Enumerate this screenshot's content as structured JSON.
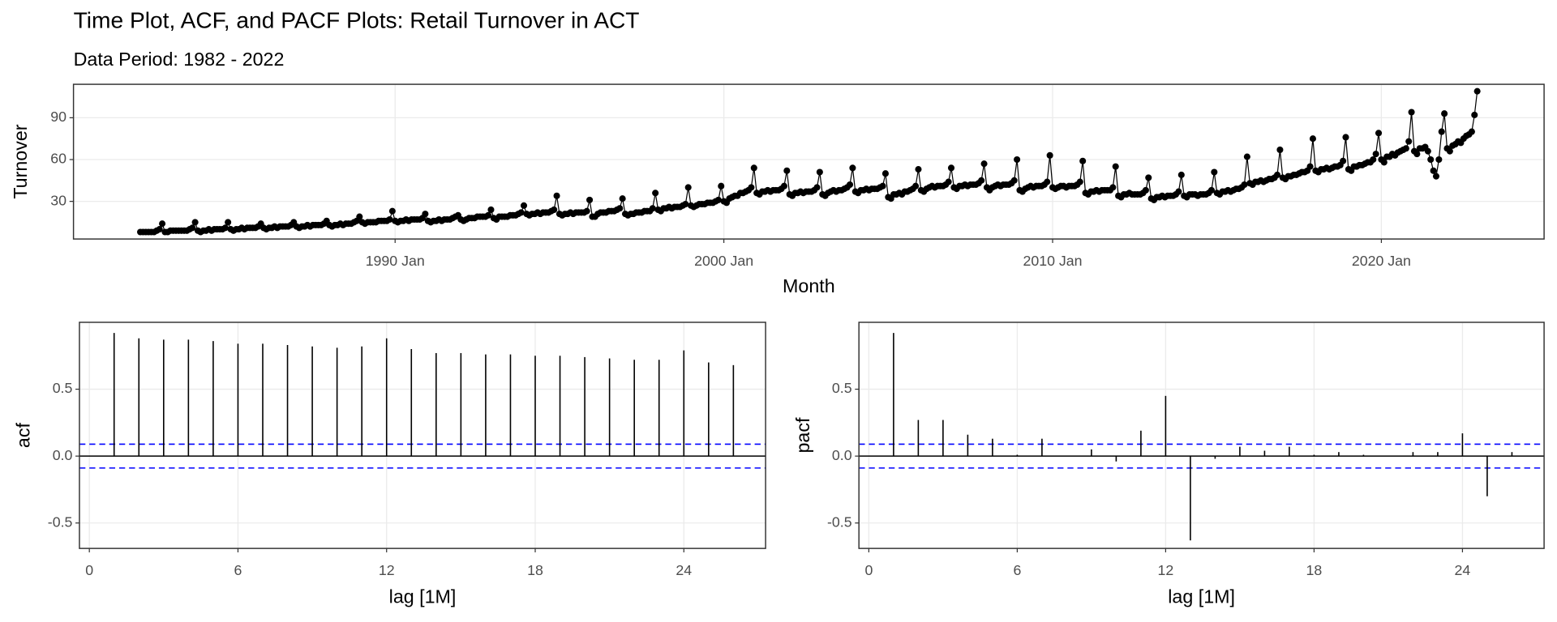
{
  "chart_data": [
    {
      "type": "line",
      "title": "Time Plot, ACF, and PACF Plots: Retail Turnover in ACT",
      "subtitle": "Data Period: 1982 - 2022",
      "x_label": "Month",
      "y_label": "Turnover",
      "color": "#000000",
      "markers": true,
      "grid": true,
      "x": [
        "1982 Apr",
        "1982 May",
        "1982 Jun",
        "1982 Jul",
        "1982 Aug",
        "1982 Sep",
        "1982 Oct",
        "1982 Nov",
        "1982 Dec",
        "1983 Jan",
        "1983 Feb",
        "1983 Mar",
        "1983 Apr",
        "1983 May",
        "1983 Jun",
        "1983 Jul",
        "1983 Aug",
        "1983 Sep",
        "1983 Oct",
        "1983 Nov",
        "1983 Dec",
        "1984 Jan",
        "1984 Feb",
        "1984 Mar",
        "1984 Apr",
        "1984 May",
        "1984 Jun",
        "1984 Jul",
        "1984 Aug",
        "1984 Sep",
        "1984 Oct",
        "1984 Nov",
        "1984 Dec",
        "1985 Jan",
        "1985 Feb",
        "1985 Mar",
        "1985 Apr",
        "1985 May",
        "1985 Jun",
        "1985 Jul",
        "1985 Aug",
        "1985 Sep",
        "1985 Oct",
        "1985 Nov",
        "1985 Dec",
        "1986 Jan",
        "1986 Feb",
        "1986 Mar",
        "1986 Apr",
        "1986 May",
        "1986 Jun",
        "1986 Jul",
        "1986 Aug",
        "1986 Sep",
        "1986 Oct",
        "1986 Nov",
        "1986 Dec",
        "1987 Jan",
        "1987 Feb",
        "1987 Mar",
        "1987 Apr",
        "1987 May",
        "1987 Jun",
        "1987 Jul",
        "1987 Aug",
        "1987 Sep",
        "1987 Oct",
        "1987 Nov",
        "1987 Dec",
        "1988 Jan",
        "1988 Feb",
        "1988 Mar",
        "1988 Apr",
        "1988 May",
        "1988 Jun",
        "1988 Jul",
        "1988 Aug",
        "1988 Sep",
        "1988 Oct",
        "1988 Nov",
        "1988 Dec",
        "1989 Jan",
        "1989 Feb",
        "1989 Mar",
        "1989 Apr",
        "1989 May",
        "1989 Jun",
        "1989 Jul",
        "1989 Aug",
        "1989 Sep",
        "1989 Oct",
        "1989 Nov",
        "1989 Dec",
        "1990 Jan",
        "1990 Feb",
        "1990 Mar",
        "1990 Apr",
        "1990 May",
        "1990 Jun",
        "1990 Jul",
        "1990 Aug",
        "1990 Sep",
        "1990 Oct",
        "1990 Nov",
        "1990 Dec",
        "1991 Jan",
        "1991 Feb",
        "1991 Mar",
        "1991 Apr",
        "1991 May",
        "1991 Jun",
        "1991 Jul",
        "1991 Aug",
        "1991 Sep",
        "1991 Oct",
        "1991 Nov",
        "1991 Dec",
        "1992 Jan",
        "1992 Feb",
        "1992 Mar",
        "1992 Apr",
        "1992 May",
        "1992 Jun",
        "1992 Jul",
        "1992 Aug",
        "1992 Sep",
        "1992 Oct",
        "1992 Nov",
        "1992 Dec",
        "1993 Jan",
        "1993 Feb",
        "1993 Mar",
        "1993 Apr",
        "1993 May",
        "1993 Jun",
        "1993 Jul",
        "1993 Aug",
        "1993 Sep",
        "1993 Oct",
        "1993 Nov",
        "1993 Dec",
        "1994 Jan",
        "1994 Feb",
        "1994 Mar",
        "1994 Apr",
        "1994 May",
        "1994 Jun",
        "1994 Jul",
        "1994 Aug",
        "1994 Sep",
        "1994 Oct",
        "1994 Nov",
        "1994 Dec",
        "1995 Jan",
        "1995 Feb",
        "1995 Mar",
        "1995 Apr",
        "1995 May",
        "1995 Jun",
        "1995 Jul",
        "1995 Aug",
        "1995 Sep",
        "1995 Oct",
        "1995 Nov",
        "1995 Dec",
        "1996 Jan",
        "1996 Feb",
        "1996 Mar",
        "1996 Apr",
        "1996 May",
        "1996 Jun",
        "1996 Jul",
        "1996 Aug",
        "1996 Sep",
        "1996 Oct",
        "1996 Nov",
        "1996 Dec",
        "1997 Jan",
        "1997 Feb",
        "1997 Mar",
        "1997 Apr",
        "1997 May",
        "1997 Jun",
        "1997 Jul",
        "1997 Aug",
        "1997 Sep",
        "1997 Oct",
        "1997 Nov",
        "1997 Dec",
        "1998 Jan",
        "1998 Feb",
        "1998 Mar",
        "1998 Apr",
        "1998 May",
        "1998 Jun",
        "1998 Jul",
        "1998 Aug",
        "1998 Sep",
        "1998 Oct",
        "1998 Nov",
        "1998 Dec",
        "1999 Jan",
        "1999 Feb",
        "1999 Mar",
        "1999 Apr",
        "1999 May",
        "1999 Jun",
        "1999 Jul",
        "1999 Aug",
        "1999 Sep",
        "1999 Oct",
        "1999 Nov",
        "1999 Dec",
        "2000 Jan",
        "2000 Feb",
        "2000 Mar",
        "2000 Apr",
        "2000 May",
        "2000 Jun",
        "2000 Jul",
        "2000 Aug",
        "2000 Sep",
        "2000 Oct",
        "2000 Nov",
        "2000 Dec",
        "2001 Jan",
        "2001 Feb",
        "2001 Mar",
        "2001 Apr",
        "2001 May",
        "2001 Jun",
        "2001 Jul",
        "2001 Aug",
        "2001 Sep",
        "2001 Oct",
        "2001 Nov",
        "2001 Dec",
        "2002 Jan",
        "2002 Feb",
        "2002 Mar",
        "2002 Apr",
        "2002 May",
        "2002 Jun",
        "2002 Jul",
        "2002 Aug",
        "2002 Sep",
        "2002 Oct",
        "2002 Nov",
        "2002 Dec",
        "2003 Jan",
        "2003 Feb",
        "2003 Mar",
        "2003 Apr",
        "2003 May",
        "2003 Jun",
        "2003 Jul",
        "2003 Aug",
        "2003 Sep",
        "2003 Oct",
        "2003 Nov",
        "2003 Dec",
        "2004 Jan",
        "2004 Feb",
        "2004 Mar",
        "2004 Apr",
        "2004 May",
        "2004 Jun",
        "2004 Jul",
        "2004 Aug",
        "2004 Sep",
        "2004 Oct",
        "2004 Nov",
        "2004 Dec",
        "2005 Jan",
        "2005 Feb",
        "2005 Mar",
        "2005 Apr",
        "2005 May",
        "2005 Jun",
        "2005 Jul",
        "2005 Aug",
        "2005 Sep",
        "2005 Oct",
        "2005 Nov",
        "2005 Dec",
        "2006 Jan",
        "2006 Feb",
        "2006 Mar",
        "2006 Apr",
        "2006 May",
        "2006 Jun",
        "2006 Jul",
        "2006 Aug",
        "2006 Sep",
        "2006 Oct",
        "2006 Nov",
        "2006 Dec",
        "2007 Jan",
        "2007 Feb",
        "2007 Mar",
        "2007 Apr",
        "2007 May",
        "2007 Jun",
        "2007 Jul",
        "2007 Aug",
        "2007 Sep",
        "2007 Oct",
        "2007 Nov",
        "2007 Dec",
        "2008 Jan",
        "2008 Feb",
        "2008 Mar",
        "2008 Apr",
        "2008 May",
        "2008 Jun",
        "2008 Jul",
        "2008 Aug",
        "2008 Sep",
        "2008 Oct",
        "2008 Nov",
        "2008 Dec",
        "2009 Jan",
        "2009 Feb",
        "2009 Mar",
        "2009 Apr",
        "2009 May",
        "2009 Jun",
        "2009 Jul",
        "2009 Aug",
        "2009 Sep",
        "2009 Oct",
        "2009 Nov",
        "2009 Dec",
        "2010 Jan",
        "2010 Feb",
        "2010 Mar",
        "2010 Apr",
        "2010 May",
        "2010 Jun",
        "2010 Jul",
        "2010 Aug",
        "2010 Sep",
        "2010 Oct",
        "2010 Nov",
        "2010 Dec",
        "2011 Jan",
        "2011 Feb",
        "2011 Mar",
        "2011 Apr",
        "2011 May",
        "2011 Jun",
        "2011 Jul",
        "2011 Aug",
        "2011 Sep",
        "2011 Oct",
        "2011 Nov",
        "2011 Dec",
        "2012 Jan",
        "2012 Feb",
        "2012 Mar",
        "2012 Apr",
        "2012 May",
        "2012 Jun",
        "2012 Jul",
        "2012 Aug",
        "2012 Sep",
        "2012 Oct",
        "2012 Nov",
        "2012 Dec",
        "2013 Jan",
        "2013 Feb",
        "2013 Mar",
        "2013 Apr",
        "2013 May",
        "2013 Jun",
        "2013 Jul",
        "2013 Aug",
        "2013 Sep",
        "2013 Oct",
        "2013 Nov",
        "2013 Dec",
        "2014 Jan",
        "2014 Feb",
        "2014 Mar",
        "2014 Apr",
        "2014 May",
        "2014 Jun",
        "2014 Jul",
        "2014 Aug",
        "2014 Sep",
        "2014 Oct",
        "2014 Nov",
        "2014 Dec",
        "2015 Jan",
        "2015 Feb",
        "2015 Mar",
        "2015 Apr",
        "2015 May",
        "2015 Jun",
        "2015 Jul",
        "2015 Aug",
        "2015 Sep",
        "2015 Oct",
        "2015 Nov",
        "2015 Dec",
        "2016 Jan",
        "2016 Feb",
        "2016 Mar",
        "2016 Apr",
        "2016 May",
        "2016 Jun",
        "2016 Jul",
        "2016 Aug",
        "2016 Sep",
        "2016 Oct",
        "2016 Nov",
        "2016 Dec",
        "2017 Jan",
        "2017 Feb",
        "2017 Mar",
        "2017 Apr",
        "2017 May",
        "2017 Jun",
        "2017 Jul",
        "2017 Aug",
        "2017 Sep",
        "2017 Oct",
        "2017 Nov",
        "2017 Dec",
        "2018 Jan",
        "2018 Feb",
        "2018 Mar",
        "2018 Apr",
        "2018 May",
        "2018 Jun",
        "2018 Jul",
        "2018 Aug",
        "2018 Sep",
        "2018 Oct",
        "2018 Nov",
        "2018 Dec",
        "2019 Jan",
        "2019 Feb",
        "2019 Mar",
        "2019 Apr",
        "2019 May",
        "2019 Jun",
        "2019 Jul",
        "2019 Aug",
        "2019 Sep",
        "2019 Oct",
        "2019 Nov",
        "2019 Dec",
        "2020 Jan",
        "2020 Feb",
        "2020 Mar",
        "2020 Apr",
        "2020 May",
        "2020 Jun",
        "2020 Jul",
        "2020 Aug",
        "2020 Sep",
        "2020 Oct",
        "2020 Nov",
        "2020 Dec",
        "2021 Jan",
        "2021 Feb",
        "2021 Mar",
        "2021 Apr",
        "2021 May",
        "2021 Jun",
        "2021 Jul",
        "2021 Aug",
        "2021 Sep",
        "2021 Oct",
        "2021 Nov",
        "2021 Dec",
        "2022 Jan",
        "2022 Feb",
        "2022 Mar",
        "2022 Apr",
        "2022 May",
        "2022 Jun",
        "2022 Jul",
        "2022 Aug",
        "2022 Sep",
        "2022 Oct",
        "2022 Nov",
        "2022 Dec"
      ],
      "values": [
        8,
        8,
        8,
        8,
        8,
        8,
        9,
        10,
        14,
        8,
        8,
        9,
        9,
        9,
        9,
        9,
        9,
        9,
        10,
        11,
        15,
        9,
        8,
        9,
        9,
        10,
        9,
        10,
        10,
        10,
        10,
        11,
        15,
        10,
        9,
        10,
        10,
        11,
        10,
        11,
        11,
        11,
        11,
        12,
        14,
        11,
        10,
        11,
        11,
        12,
        11,
        12,
        12,
        12,
        12,
        13,
        15,
        12,
        11,
        12,
        12,
        13,
        12,
        13,
        13,
        13,
        13,
        14,
        16,
        13,
        12,
        13,
        13,
        14,
        13,
        14,
        14,
        14,
        15,
        16,
        19,
        15,
        14,
        15,
        15,
        15,
        15,
        16,
        16,
        16,
        16,
        17,
        23,
        16,
        15,
        16,
        16,
        17,
        16,
        17,
        17,
        17,
        17,
        18,
        21,
        16,
        15,
        16,
        16,
        17,
        16,
        17,
        17,
        17,
        18,
        19,
        20,
        17,
        16,
        17,
        18,
        18,
        18,
        19,
        19,
        19,
        19,
        20,
        24,
        18,
        17,
        19,
        19,
        19,
        19,
        20,
        20,
        20,
        21,
        22,
        27,
        21,
        20,
        21,
        21,
        22,
        21,
        22,
        22,
        22,
        23,
        24,
        34,
        21,
        20,
        21,
        21,
        22,
        21,
        22,
        22,
        22,
        22,
        23,
        31,
        19,
        19,
        21,
        22,
        22,
        22,
        23,
        23,
        23,
        24,
        25,
        32,
        21,
        20,
        21,
        21,
        22,
        22,
        22,
        23,
        23,
        23,
        25,
        36,
        24,
        23,
        25,
        25,
        26,
        25,
        26,
        26,
        26,
        27,
        28,
        40,
        27,
        26,
        27,
        28,
        28,
        28,
        29,
        29,
        29,
        30,
        31,
        41,
        30,
        29,
        32,
        33,
        34,
        34,
        36,
        36,
        37,
        38,
        40,
        54,
        36,
        35,
        37,
        37,
        38,
        37,
        38,
        38,
        38,
        39,
        41,
        52,
        35,
        34,
        36,
        36,
        37,
        36,
        37,
        37,
        37,
        38,
        40,
        51,
        35,
        34,
        36,
        37,
        38,
        37,
        38,
        38,
        39,
        40,
        42,
        54,
        37,
        36,
        38,
        38,
        39,
        38,
        39,
        39,
        39,
        40,
        41,
        50,
        33,
        32,
        35,
        35,
        36,
        35,
        37,
        37,
        38,
        39,
        41,
        53,
        38,
        37,
        39,
        40,
        41,
        40,
        41,
        41,
        41,
        42,
        44,
        54,
        40,
        39,
        41,
        41,
        42,
        41,
        42,
        42,
        42,
        43,
        45,
        57,
        40,
        38,
        40,
        41,
        42,
        41,
        42,
        42,
        42,
        43,
        45,
        60,
        38,
        37,
        39,
        40,
        41,
        40,
        41,
        41,
        41,
        42,
        44,
        63,
        40,
        39,
        40,
        41,
        41,
        40,
        41,
        41,
        41,
        42,
        44,
        59,
        36,
        35,
        37,
        37,
        38,
        37,
        38,
        38,
        38,
        38,
        40,
        55,
        34,
        33,
        35,
        35,
        36,
        35,
        35,
        35,
        35,
        36,
        38,
        47,
        32,
        31,
        33,
        33,
        34,
        33,
        34,
        34,
        34,
        35,
        37,
        49,
        34,
        33,
        35,
        35,
        35,
        34,
        35,
        35,
        35,
        36,
        38,
        51,
        36,
        35,
        37,
        37,
        38,
        37,
        38,
        39,
        39,
        40,
        42,
        62,
        43,
        42,
        44,
        44,
        45,
        44,
        45,
        46,
        46,
        47,
        49,
        67,
        47,
        46,
        48,
        48,
        49,
        49,
        50,
        51,
        51,
        52,
        55,
        75,
        52,
        51,
        53,
        53,
        54,
        53,
        54,
        55,
        55,
        56,
        59,
        76,
        53,
        52,
        55,
        55,
        56,
        56,
        57,
        58,
        58,
        60,
        64,
        79,
        60,
        58,
        62,
        62,
        64,
        63,
        65,
        66,
        67,
        68,
        73,
        94,
        66,
        64,
        68,
        68,
        69,
        66,
        60,
        52,
        48,
        60,
        80,
        93,
        68,
        66,
        70,
        71,
        73,
        72,
        75,
        77,
        78,
        80,
        92,
        109
      ],
      "xticks": [
        "1990 Jan",
        "2000 Jan",
        "2010 Jan",
        "2020 Jan"
      ],
      "ylim": [
        3,
        114
      ],
      "yticks": [
        30,
        60,
        90
      ]
    },
    {
      "type": "acf",
      "x_label": "lag [1M]",
      "y_label": "acf",
      "color": "#000000",
      "ci_color": "#0000ff",
      "grid": true,
      "x": [
        1,
        2,
        3,
        4,
        5,
        6,
        7,
        8,
        9,
        10,
        11,
        12,
        13,
        14,
        15,
        16,
        17,
        18,
        19,
        20,
        21,
        22,
        23,
        24,
        25,
        26
      ],
      "values": [
        0.92,
        0.88,
        0.87,
        0.87,
        0.86,
        0.84,
        0.84,
        0.83,
        0.82,
        0.81,
        0.82,
        0.88,
        0.8,
        0.77,
        0.77,
        0.76,
        0.76,
        0.75,
        0.75,
        0.74,
        0.73,
        0.72,
        0.72,
        0.79,
        0.7,
        0.68
      ],
      "ci_lines": [
        0.089,
        -0.089
      ],
      "xlim": [
        -0.4,
        27.3
      ],
      "xticks": [
        0,
        6,
        12,
        18,
        24
      ],
      "ylim": [
        -0.69,
        1.0
      ],
      "yticks": [
        {
          "value": -0.5,
          "label": "-0.5"
        },
        {
          "value": 0,
          "label": "0.0"
        },
        {
          "value": 0.5,
          "label": "0.5"
        }
      ]
    },
    {
      "type": "acf",
      "x_label": "lag [1M]",
      "y_label": "pacf",
      "color": "#000000",
      "ci_color": "#0000ff",
      "grid": true,
      "x": [
        1,
        2,
        3,
        4,
        5,
        6,
        7,
        8,
        9,
        10,
        11,
        12,
        13,
        14,
        15,
        16,
        17,
        18,
        19,
        20,
        21,
        22,
        23,
        24,
        25,
        26
      ],
      "values": [
        0.92,
        0.27,
        0.27,
        0.16,
        0.13,
        0.01,
        0.13,
        0.0,
        0.05,
        -0.04,
        0.19,
        0.45,
        -0.63,
        -0.02,
        0.07,
        0.04,
        0.07,
        0.01,
        0.03,
        0.01,
        0.0,
        0.03,
        0.03,
        0.17,
        -0.3,
        0.03
      ],
      "ci_lines": [
        0.089,
        -0.089
      ],
      "xlim": [
        -0.4,
        27.3
      ],
      "xticks": [
        0,
        6,
        12,
        18,
        24
      ],
      "ylim": [
        -0.69,
        1.0
      ],
      "yticks": [
        {
          "value": -0.5,
          "label": "-0.5"
        },
        {
          "value": 0,
          "label": "0.0"
        },
        {
          "value": 0.5,
          "label": "0.5"
        }
      ]
    }
  ]
}
